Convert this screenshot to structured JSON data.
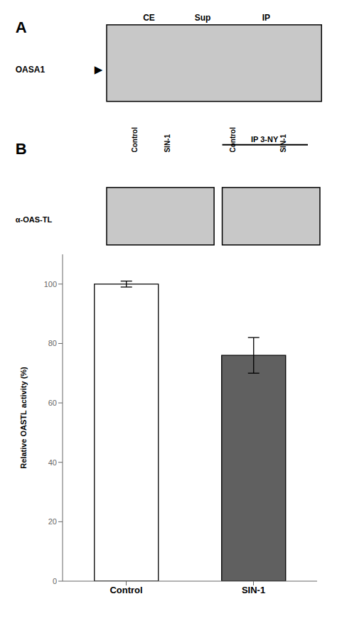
{
  "chart_data": {
    "type": "bar",
    "annotations": [
      "A",
      "CE",
      "Sup",
      "IP",
      "OASA1",
      "▶",
      "B",
      "IP 3-NY",
      "Control",
      "SIN-1",
      "Control",
      "SIN-1",
      "α-OAS-TL"
    ],
    "categories": [
      "Control",
      "SIN-1"
    ],
    "values": [
      100,
      76
    ],
    "errors": [
      1,
      6
    ],
    "colors": [
      "#ffffff",
      "#606060"
    ],
    "ylabel": "Relative OASTL activity (%)",
    "ylim": [
      0,
      110
    ],
    "yticks": [
      0,
      20,
      40,
      60,
      80,
      100
    ]
  }
}
